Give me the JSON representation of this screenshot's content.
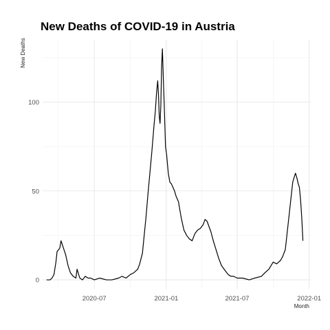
{
  "chart_data": {
    "type": "line",
    "title": "New Deaths of COVID-19 in Austria",
    "xlabel": "Month",
    "ylabel": "New Deaths",
    "x_type": "date",
    "xlim": [
      "2020-02-20",
      "2022-01-05"
    ],
    "ylim": [
      -5,
      135
    ],
    "x_ticks": [
      {
        "date": "2020-07-01",
        "label": "2020-07"
      },
      {
        "date": "2021-01-01",
        "label": "2021-01"
      },
      {
        "date": "2021-07-01",
        "label": "2021-07"
      },
      {
        "date": "2022-01-01",
        "label": "2022-01"
      }
    ],
    "y_ticks": [
      {
        "value": 0,
        "label": "0"
      },
      {
        "value": 50,
        "label": "50"
      },
      {
        "value": 100,
        "label": "100"
      }
    ],
    "grid": true,
    "series": [
      {
        "x": [
          "2020-03-01",
          "2020-03-10",
          "2020-03-15",
          "2020-03-20",
          "2020-03-25",
          "2020-03-28",
          "2020-04-01",
          "2020-04-04",
          "2020-04-07",
          "2020-04-10",
          "2020-04-13",
          "2020-04-16",
          "2020-04-19",
          "2020-04-22",
          "2020-04-25",
          "2020-05-01",
          "2020-05-08",
          "2020-05-15",
          "2020-05-18",
          "2020-05-22",
          "2020-05-25",
          "2020-06-01",
          "2020-06-08",
          "2020-06-15",
          "2020-06-22",
          "2020-07-01",
          "2020-07-15",
          "2020-08-01",
          "2020-08-15",
          "2020-09-01",
          "2020-09-10",
          "2020-09-20",
          "2020-10-01",
          "2020-10-10",
          "2020-10-20",
          "2020-10-25",
          "2020-11-01",
          "2020-11-05",
          "2020-11-10",
          "2020-11-15",
          "2020-11-20",
          "2020-11-25",
          "2020-11-28",
          "2020-12-01",
          "2020-12-04",
          "2020-12-07",
          "2020-12-10",
          "2020-12-12",
          "2020-12-14",
          "2020-12-16",
          "2020-12-18",
          "2020-12-20",
          "2020-12-22",
          "2020-12-24",
          "2020-12-27",
          "2020-12-30",
          "2021-01-02",
          "2021-01-06",
          "2021-01-10",
          "2021-01-14",
          "2021-01-18",
          "2021-01-22",
          "2021-01-26",
          "2021-02-01",
          "2021-02-08",
          "2021-02-15",
          "2021-02-22",
          "2021-03-01",
          "2021-03-08",
          "2021-03-15",
          "2021-03-22",
          "2021-03-29",
          "2021-04-05",
          "2021-04-10",
          "2021-04-15",
          "2021-04-20",
          "2021-04-25",
          "2021-05-01",
          "2021-05-08",
          "2021-05-15",
          "2021-05-22",
          "2021-06-01",
          "2021-06-08",
          "2021-06-15",
          "2021-06-22",
          "2021-07-01",
          "2021-07-15",
          "2021-08-01",
          "2021-08-15",
          "2021-09-01",
          "2021-09-10",
          "2021-09-20",
          "2021-10-01",
          "2021-10-10",
          "2021-10-20",
          "2021-10-25",
          "2021-11-01",
          "2021-11-05",
          "2021-11-10",
          "2021-11-15",
          "2021-11-20",
          "2021-11-24",
          "2021-11-27",
          "2021-12-01",
          "2021-12-04",
          "2021-12-07",
          "2021-12-10",
          "2021-12-13",
          "2021-12-16"
        ],
        "y": [
          0,
          0,
          1,
          3,
          10,
          16,
          17,
          18,
          22,
          20,
          18,
          16,
          14,
          11,
          8,
          4,
          2,
          1,
          6,
          3,
          1,
          0,
          2,
          1,
          1,
          0,
          1,
          0,
          0,
          1,
          2,
          1,
          3,
          4,
          6,
          9,
          15,
          24,
          35,
          48,
          60,
          72,
          80,
          88,
          95,
          105,
          112,
          104,
          92,
          88,
          98,
          120,
          130,
          116,
          96,
          75,
          70,
          60,
          55,
          54,
          52,
          50,
          47,
          44,
          35,
          28,
          25,
          23,
          22,
          26,
          28,
          29,
          31,
          34,
          33,
          30,
          27,
          22,
          17,
          12,
          8,
          5,
          3,
          2,
          2,
          1,
          1,
          0,
          1,
          2,
          4,
          6,
          10,
          9,
          11,
          13,
          17,
          25,
          35,
          45,
          55,
          58,
          60,
          57,
          54,
          52,
          45,
          35,
          22
        ]
      }
    ]
  }
}
